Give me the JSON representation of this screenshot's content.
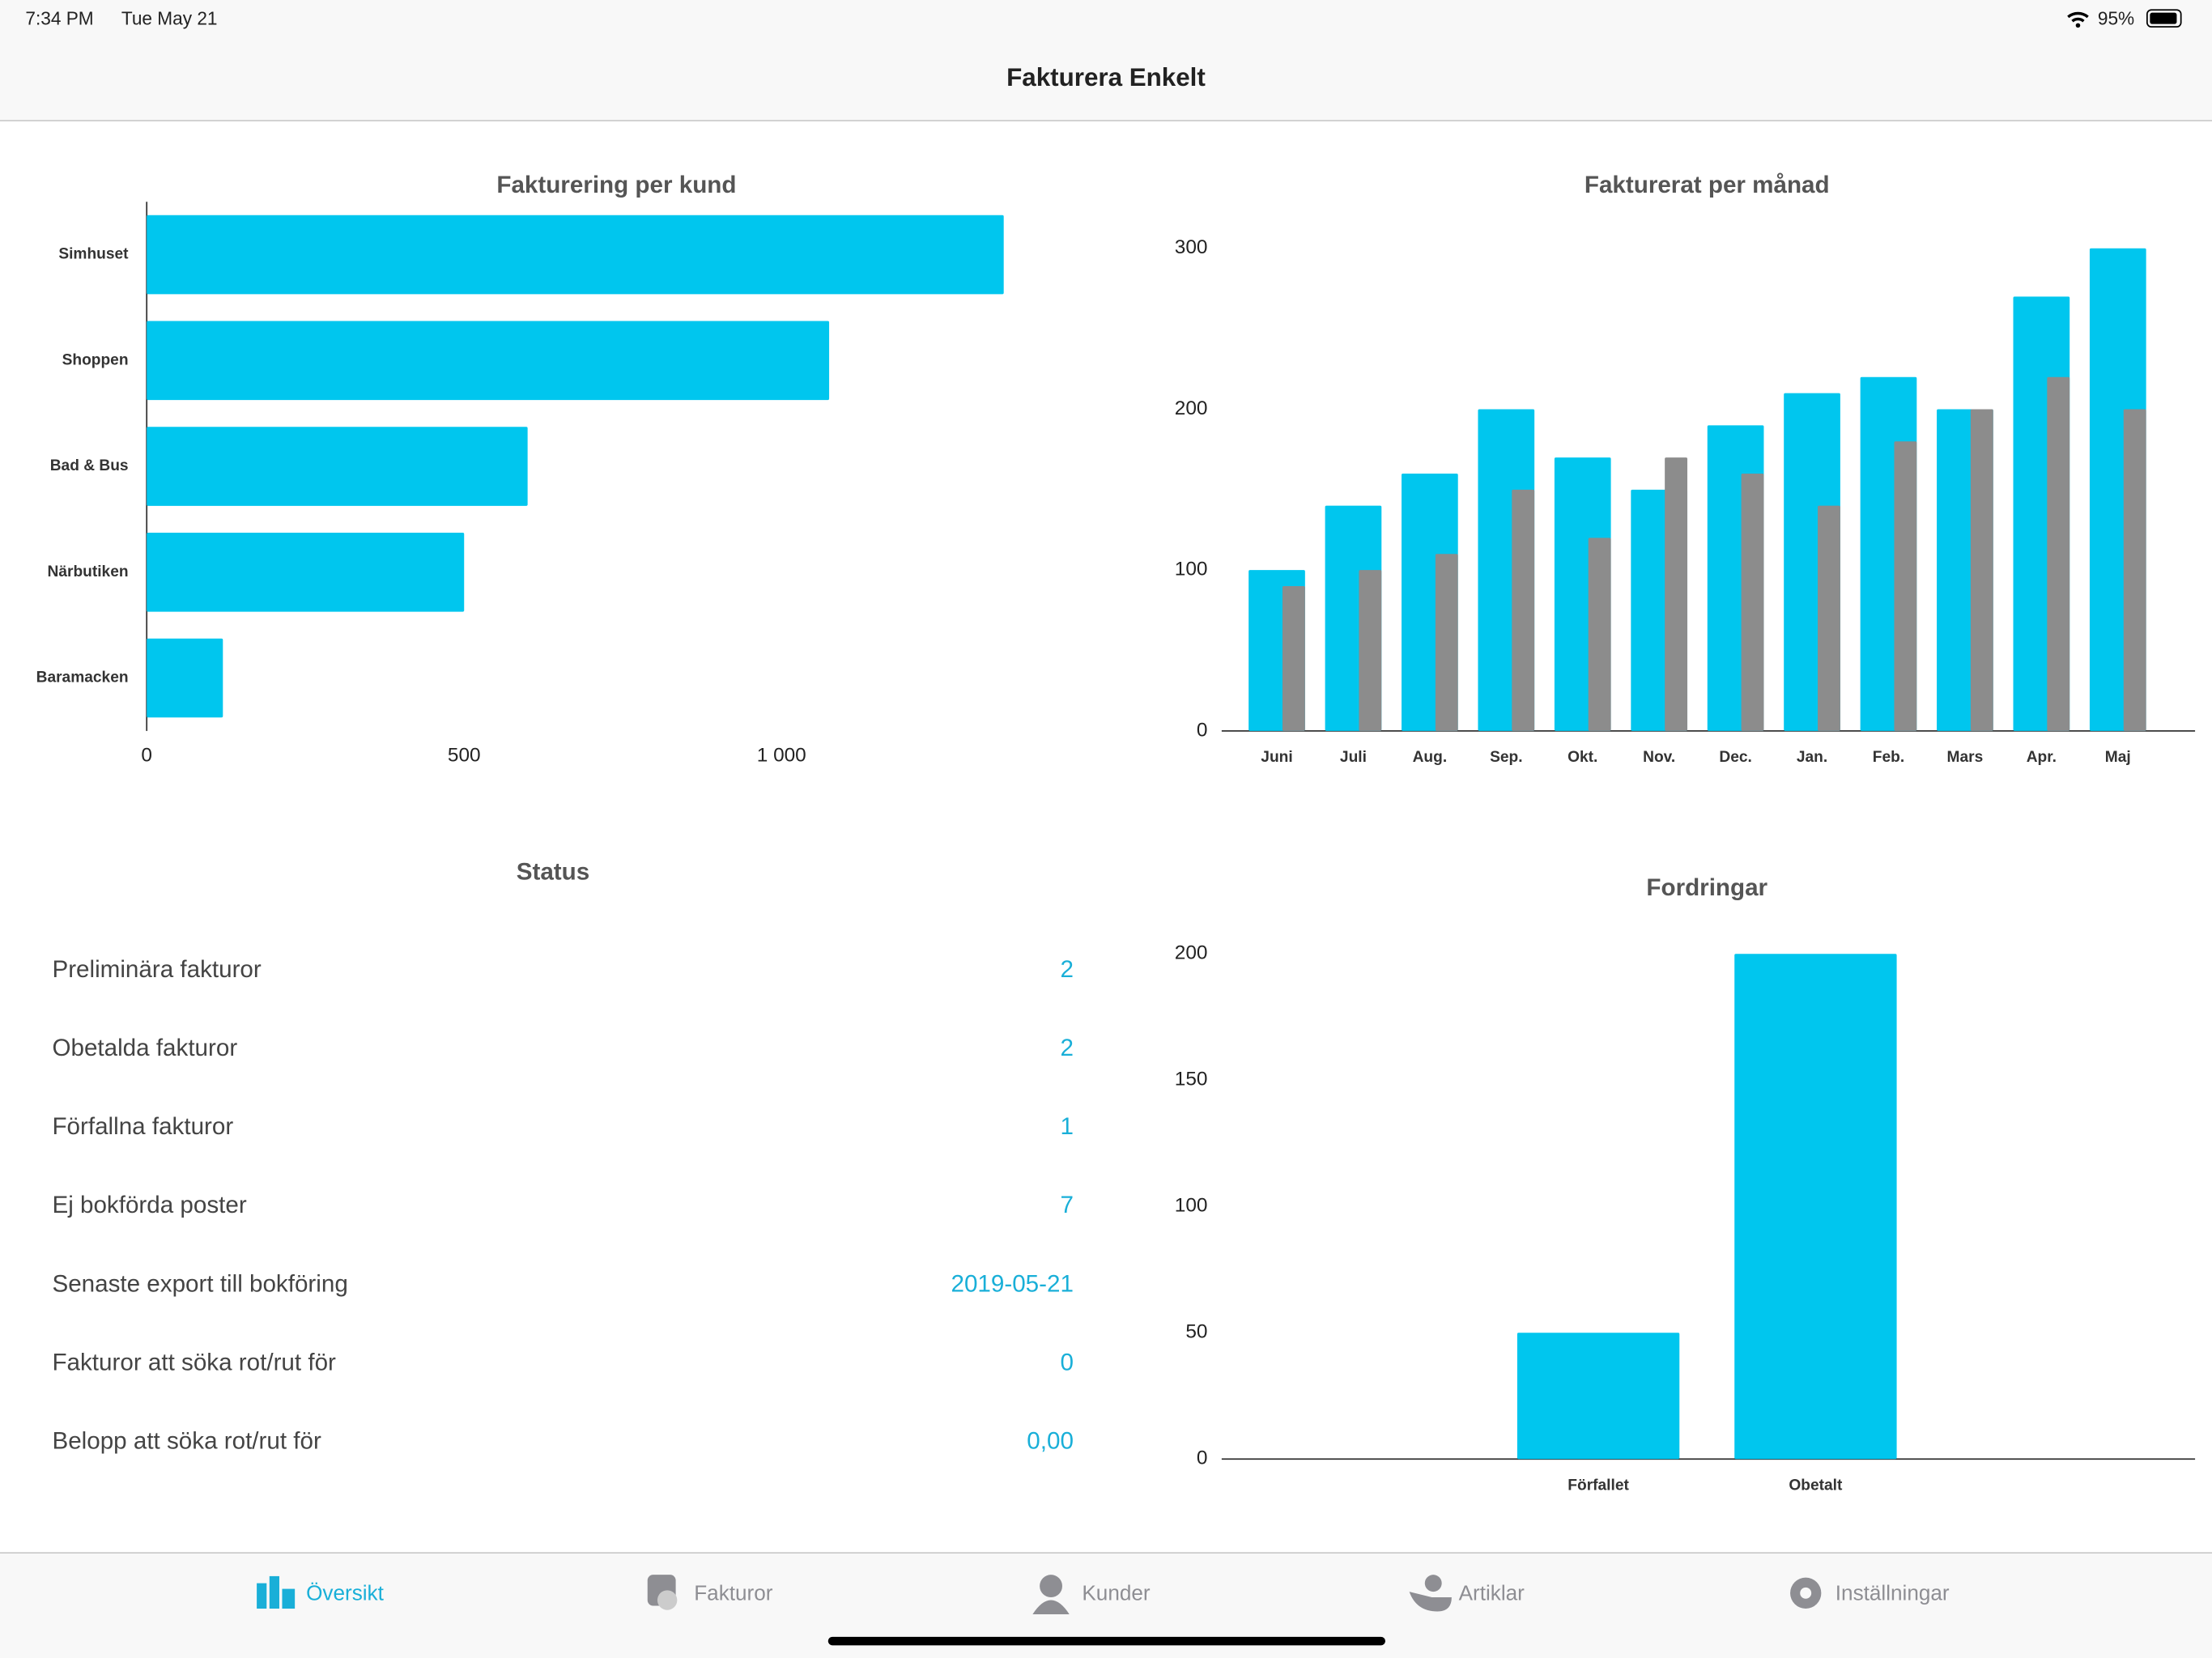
{
  "status_bar": {
    "time": "7:34 PM",
    "date": "Tue May 21",
    "battery": "95%"
  },
  "header": {
    "title": "Fakturera Enkelt"
  },
  "chart_data": [
    {
      "type": "barh",
      "title": "Fakturering per kund",
      "categories": [
        "Simhuset",
        "Shoppen",
        "Bad & Bus",
        "Närbutiken",
        "Baramacken"
      ],
      "values": [
        1350,
        1075,
        600,
        500,
        120
      ],
      "color": "#00c6ee",
      "xlim": [
        0,
        1400
      ],
      "xticks": [
        0,
        500,
        {
          "value": 1000,
          "label": "1 000"
        }
      ]
    },
    {
      "type": "bar",
      "title": "Fakturerat per månad",
      "categories": [
        "Juni",
        "Juli",
        "Aug.",
        "Sep.",
        "Okt.",
        "Nov.",
        "Dec.",
        "Jan.",
        "Feb.",
        "Mars",
        "Apr.",
        "Maj"
      ],
      "series": [
        {
          "color": "#00c6ee",
          "values": [
            100,
            140,
            160,
            200,
            170,
            150,
            190,
            210,
            220,
            200,
            270,
            300
          ]
        },
        {
          "color": "#8c8c8c",
          "values": [
            90,
            100,
            110,
            150,
            120,
            170,
            160,
            140,
            180,
            200,
            220,
            200
          ]
        }
      ],
      "ylim": [
        0,
        300
      ],
      "yticks": [
        0,
        100,
        200,
        300
      ]
    },
    {
      "type": "bar",
      "title": "Fordringar",
      "categories": [
        "Förfallet",
        "Obetalt"
      ],
      "series": [
        {
          "color": "#00c6ee",
          "values": [
            50,
            200
          ]
        }
      ],
      "ylim": [
        0,
        200
      ],
      "yticks": [
        0,
        50,
        100,
        150,
        200
      ]
    }
  ],
  "status": {
    "title": "Status",
    "rows": [
      [
        "Preliminära fakturor",
        "2"
      ],
      [
        "Obetalda fakturor",
        "2"
      ],
      [
        "Förfallna fakturor",
        "1"
      ],
      [
        "Ej bokförda poster",
        "7"
      ],
      [
        "Senaste export till bokföring",
        "2019-05-21"
      ],
      [
        "Fakturor att söka rot/rut för",
        "0"
      ],
      [
        "Belopp att söka rot/rut för",
        "0,00"
      ]
    ]
  },
  "tab_bar": {
    "tabs": [
      "Översikt",
      "Fakturor",
      "Kunder",
      "Artiklar",
      "Inställningar"
    ]
  }
}
